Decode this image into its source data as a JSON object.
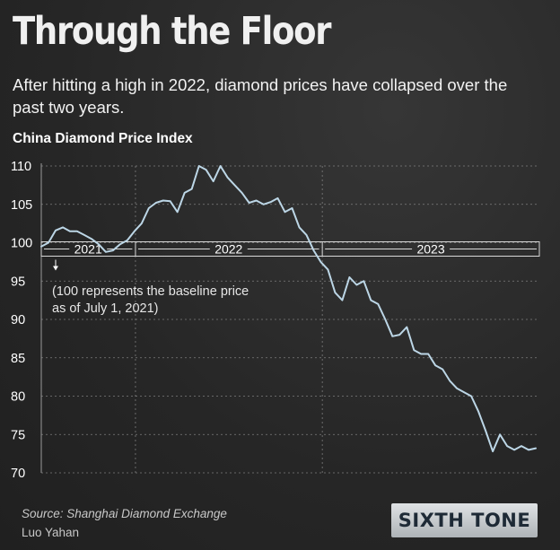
{
  "header": {
    "title": "Through the Floor",
    "subtitle": "After hitting a high in 2022, diamond prices have collapsed over the past two years."
  },
  "footer": {
    "source": "Source: Shanghai Diamond Exchange",
    "author": "Luo Yahan",
    "logo": "SIXTH TONE"
  },
  "colors": {
    "background": "#2a2a2a",
    "line": "#bcd6e6",
    "grid": "#9a9a9a",
    "text": "#ffffff"
  },
  "chart_data": {
    "type": "line",
    "title": "China Diamond Price Index",
    "xlabel": "",
    "ylabel": "",
    "ylim": [
      70,
      110
    ],
    "yticks": [
      70,
      75,
      80,
      85,
      90,
      95,
      100,
      105,
      110
    ],
    "x_range": [
      "2021-07-01",
      "2024-02-29"
    ],
    "year_labels": [
      {
        "label": "2021",
        "from": "2021-07-01",
        "to": "2021-12-31"
      },
      {
        "label": "2022",
        "from": "2022-01-01",
        "to": "2022-12-31"
      },
      {
        "label": "2023",
        "from": "2023-01-01",
        "to": "2024-02-29"
      }
    ],
    "baseline": 100,
    "annotation": "(100 represents  the baseline price as of July 1, 2021)",
    "annotation_lines": [
      "(100 represents  the baseline price",
      "as of July 1, 2021)"
    ],
    "grid": true,
    "series": [
      {
        "x": [
          "2021-07-01",
          "2021-07-15",
          "2021-07-29",
          "2021-08-12",
          "2021-08-26",
          "2021-09-09",
          "2021-09-23",
          "2021-10-07",
          "2021-10-21",
          "2021-11-04",
          "2021-11-18",
          "2021-12-02",
          "2021-12-16",
          "2021-12-30",
          "2022-01-13",
          "2022-01-27",
          "2022-02-10",
          "2022-02-24",
          "2022-03-10",
          "2022-03-24",
          "2022-04-07",
          "2022-04-21",
          "2022-05-05",
          "2022-05-19",
          "2022-06-02",
          "2022-06-16",
          "2022-06-30",
          "2022-07-14",
          "2022-07-28",
          "2022-08-11",
          "2022-08-25",
          "2022-09-08",
          "2022-09-22",
          "2022-10-06",
          "2022-10-20",
          "2022-11-03",
          "2022-11-17",
          "2022-12-01",
          "2022-12-15",
          "2022-12-29",
          "2023-01-12",
          "2023-01-26",
          "2023-02-09",
          "2023-02-23",
          "2023-03-09",
          "2023-03-23",
          "2023-04-06",
          "2023-04-20",
          "2023-05-04",
          "2023-05-18",
          "2023-06-01",
          "2023-06-15",
          "2023-06-29",
          "2023-07-13",
          "2023-07-27",
          "2023-08-10",
          "2023-08-24",
          "2023-09-07",
          "2023-09-21",
          "2023-10-05",
          "2023-10-19",
          "2023-11-02",
          "2023-11-16",
          "2023-11-30",
          "2023-12-14",
          "2023-12-28",
          "2024-01-11",
          "2024-01-25",
          "2024-02-08",
          "2024-02-22"
        ],
        "values": [
          99.5,
          100.0,
          101.6,
          102.0,
          101.5,
          101.5,
          101.0,
          100.5,
          99.8,
          98.8,
          99.0,
          99.8,
          100.3,
          101.5,
          102.5,
          104.5,
          105.2,
          105.5,
          105.4,
          104.0,
          106.5,
          107.0,
          110.0,
          109.5,
          108.0,
          110.0,
          108.5,
          107.5,
          106.5,
          105.2,
          105.5,
          105.0,
          105.3,
          105.8,
          104.0,
          104.5,
          102.0,
          101.0,
          99.0,
          97.5,
          96.5,
          93.5,
          92.5,
          95.5,
          94.5,
          95.0,
          92.5,
          92.0,
          90.0,
          87.8,
          88.0,
          89.0,
          86.0,
          85.5,
          85.5,
          84.0,
          83.5,
          82.0,
          81.0,
          80.5,
          80.0,
          78.0,
          75.5,
          72.8,
          75.0,
          73.5,
          73.0,
          73.5,
          73.0,
          73.2
        ]
      }
    ]
  }
}
